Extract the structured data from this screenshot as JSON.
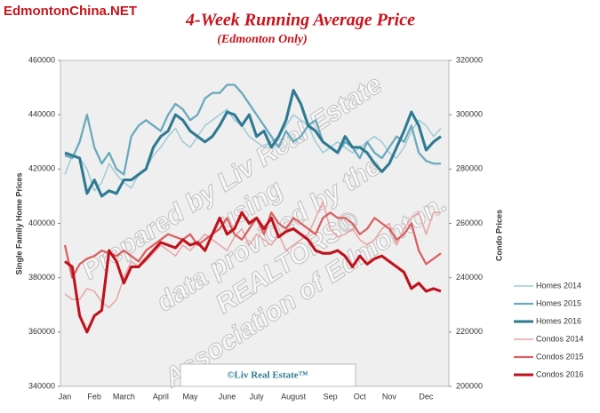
{
  "chart_data": {
    "type": "line",
    "site_label": "EdmontonChina.NET",
    "title": "4-Week Running Average Price",
    "subtitle": "(Edmonton Only)",
    "y_label": "Single Family Home Prices",
    "y2_label": "Condo Prices",
    "watermark": [
      "Prepared by Liv Real Estate",
      "using",
      "data provided by the",
      "REALTORS®",
      "Association of Edmonton."
    ],
    "footer_box": "©Liv Real Estate™",
    "categories": [
      "Jan",
      null,
      null,
      null,
      "Feb",
      null,
      null,
      null,
      "March",
      null,
      null,
      null,
      null,
      "April",
      null,
      null,
      null,
      "May",
      null,
      null,
      null,
      null,
      "June",
      null,
      null,
      null,
      "July",
      null,
      null,
      null,
      null,
      "August",
      null,
      null,
      null,
      null,
      "Sep",
      null,
      null,
      null,
      "Oct",
      null,
      null,
      null,
      "Nov",
      null,
      null,
      null,
      null,
      "Dec",
      null,
      null
    ],
    "ylim": [
      340000,
      460000
    ],
    "yticks": [
      340000,
      360000,
      380000,
      400000,
      420000,
      440000,
      460000
    ],
    "y2lim": [
      200000,
      320000
    ],
    "y2ticks": [
      200000,
      220000,
      240000,
      260000,
      280000,
      300000,
      320000
    ],
    "series": [
      {
        "name": "Homes 2014",
        "color": "#9fcbd6",
        "values": [
          418000,
          425000,
          424000,
          420000,
          412000,
          415000,
          422000,
          418000,
          415000,
          413000,
          418000,
          420000,
          425000,
          428000,
          432000,
          435000,
          430000,
          428000,
          432000,
          436000,
          438000,
          440000,
          442000,
          438000,
          436000,
          432000,
          430000,
          428000,
          430000,
          432000,
          436000,
          440000,
          438000,
          436000,
          430000,
          426000,
          428000,
          430000,
          428000,
          426000,
          428000,
          430000,
          432000,
          430000,
          426000,
          424000,
          428000,
          434000,
          438000,
          436000,
          432000,
          435000
        ]
      },
      {
        "name": "Homes 2015",
        "color": "#6aaabd",
        "values": [
          425000,
          424000,
          430000,
          440000,
          428000,
          422000,
          426000,
          420000,
          418000,
          432000,
          436000,
          438000,
          436000,
          434000,
          440000,
          444000,
          442000,
          438000,
          440000,
          446000,
          448000,
          448000,
          451000,
          451000,
          448000,
          444000,
          440000,
          436000,
          432000,
          428000,
          434000,
          430000,
          432000,
          436000,
          438000,
          430000,
          428000,
          426000,
          430000,
          428000,
          424000,
          430000,
          426000,
          424000,
          428000,
          432000,
          430000,
          436000,
          426000,
          423000,
          422000,
          422000
        ]
      },
      {
        "name": "Homes 2016",
        "color": "#2e7a93",
        "values": [
          426000,
          425000,
          424000,
          411000,
          416000,
          410000,
          412000,
          411000,
          416000,
          416000,
          418000,
          420000,
          428000,
          432000,
          434000,
          440000,
          438000,
          434000,
          432000,
          430000,
          432000,
          436000,
          441000,
          440000,
          436000,
          440000,
          432000,
          434000,
          428000,
          432000,
          438000,
          449000,
          444000,
          436000,
          434000,
          430000,
          428000,
          426000,
          432000,
          428000,
          428000,
          426000,
          422000,
          419000,
          422000,
          428000,
          434000,
          441000,
          436000,
          427000,
          430000,
          432000
        ]
      },
      {
        "name": "Condos 2014",
        "color": "#e8a3a3",
        "axis": "y2",
        "values": [
          234000,
          232000,
          232000,
          236000,
          235000,
          231000,
          229000,
          232000,
          240000,
          246000,
          244000,
          246000,
          249000,
          252000,
          250000,
          248000,
          252000,
          250000,
          253000,
          256000,
          254000,
          252000,
          250000,
          255000,
          258000,
          252000,
          256000,
          254000,
          252000,
          256000,
          250000,
          252000,
          254000,
          256000,
          262000,
          268000,
          258000,
          255000,
          256000,
          258000,
          254000,
          252000,
          254000,
          258000,
          260000,
          252000,
          258000,
          262000,
          264000,
          256000,
          264000,
          264000
        ]
      },
      {
        "name": "Condos 2015",
        "color": "#d86262",
        "axis": "y2",
        "values": [
          252000,
          240000,
          245000,
          247000,
          248000,
          250000,
          249000,
          248000,
          250000,
          248000,
          246000,
          250000,
          252000,
          254000,
          256000,
          255000,
          254000,
          256000,
          252000,
          254000,
          256000,
          258000,
          262000,
          256000,
          254000,
          258000,
          262000,
          256000,
          264000,
          260000,
          258000,
          262000,
          260000,
          258000,
          256000,
          262000,
          264000,
          262000,
          262000,
          260000,
          256000,
          258000,
          262000,
          260000,
          258000,
          254000,
          256000,
          260000,
          250000,
          245000,
          247000,
          249000
        ]
      },
      {
        "name": "Condos 2016",
        "color": "#c0121c",
        "axis": "y2",
        "values": [
          246000,
          244000,
          226000,
          220000,
          226000,
          228000,
          250000,
          246000,
          238000,
          244000,
          244000,
          247000,
          250000,
          253000,
          252000,
          251000,
          254000,
          252000,
          253000,
          250000,
          256000,
          262000,
          256000,
          258000,
          264000,
          260000,
          262000,
          258000,
          262000,
          255000,
          257000,
          258000,
          256000,
          254000,
          250000,
          249000,
          249000,
          250000,
          248000,
          244000,
          248000,
          245000,
          247000,
          248000,
          246000,
          244000,
          242000,
          236000,
          238000,
          235000,
          236000,
          235000
        ]
      }
    ]
  }
}
